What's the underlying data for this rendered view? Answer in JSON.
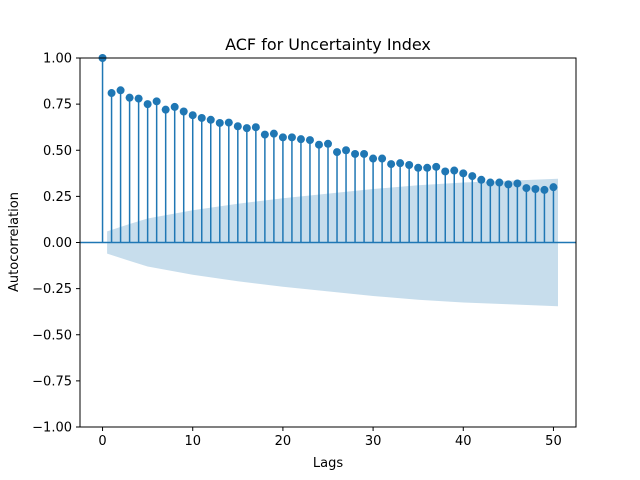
{
  "chart_data": {
    "type": "scatter",
    "subtype": "stem-acf",
    "title": "ACF for Uncertainty Index",
    "xlabel": "Lags",
    "ylabel": "Autocorrelation",
    "xlim": [
      -2.5,
      52.5
    ],
    "ylim": [
      -1.0,
      1.0
    ],
    "x_ticks": [
      0,
      10,
      20,
      30,
      40,
      50
    ],
    "y_ticks": [
      -1.0,
      -0.75,
      -0.5,
      -0.25,
      0.0,
      0.25,
      0.5,
      0.75,
      1.0
    ],
    "x_tick_labels": [
      "0",
      "10",
      "20",
      "30",
      "40",
      "50"
    ],
    "y_tick_labels": [
      "−1.00",
      "−0.75",
      "−0.50",
      "−0.25",
      "0.00",
      "0.25",
      "0.50",
      "0.75",
      "1.00"
    ],
    "grid": false,
    "colors": {
      "marker": "#1f77b4",
      "band": "#1f77b4",
      "band_opacity": 0.25
    },
    "lags": [
      0,
      1,
      2,
      3,
      4,
      5,
      6,
      7,
      8,
      9,
      10,
      11,
      12,
      13,
      14,
      15,
      16,
      17,
      18,
      19,
      20,
      21,
      22,
      23,
      24,
      25,
      26,
      27,
      28,
      29,
      30,
      31,
      32,
      33,
      34,
      35,
      36,
      37,
      38,
      39,
      40,
      41,
      42,
      43,
      44,
      45,
      46,
      47,
      48,
      49,
      50
    ],
    "values": [
      1.0,
      0.81,
      0.825,
      0.785,
      0.78,
      0.75,
      0.765,
      0.72,
      0.735,
      0.71,
      0.69,
      0.675,
      0.665,
      0.648,
      0.65,
      0.63,
      0.62,
      0.625,
      0.585,
      0.59,
      0.57,
      0.57,
      0.56,
      0.555,
      0.53,
      0.535,
      0.49,
      0.5,
      0.48,
      0.48,
      0.455,
      0.455,
      0.425,
      0.43,
      0.42,
      0.405,
      0.405,
      0.41,
      0.385,
      0.39,
      0.375,
      0.36,
      0.34,
      0.325,
      0.325,
      0.315,
      0.32,
      0.295,
      0.29,
      0.285,
      0.3
    ],
    "confidence_band": [
      [
        0.5,
        0.06
      ],
      [
        3,
        0.1
      ],
      [
        5,
        0.13
      ],
      [
        10,
        0.175
      ],
      [
        15,
        0.21
      ],
      [
        20,
        0.24
      ],
      [
        25,
        0.265
      ],
      [
        30,
        0.29
      ],
      [
        35,
        0.31
      ],
      [
        40,
        0.325
      ],
      [
        45,
        0.335
      ],
      [
        50.5,
        0.345
      ]
    ]
  }
}
